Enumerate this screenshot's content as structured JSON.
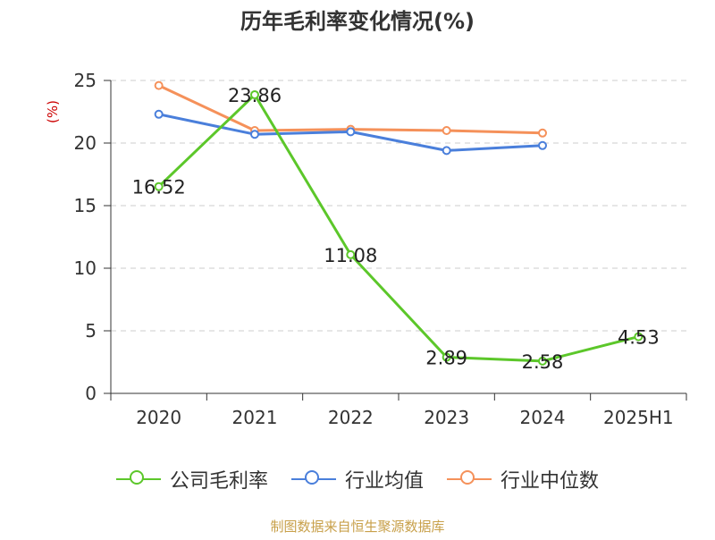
{
  "chart_data": {
    "type": "line",
    "title": "历年毛利率变化情况(%)",
    "ylabel": "(%)",
    "xlabel": "",
    "categories": [
      "2020",
      "2021",
      "2022",
      "2023",
      "2024",
      "2025H1"
    ],
    "ylim": [
      0,
      25
    ],
    "yticks": [
      0,
      5,
      10,
      15,
      20,
      25
    ],
    "grid": true,
    "legend_position": "bottom",
    "series": [
      {
        "name": "公司毛利率",
        "color": "#5cc72a",
        "values": [
          16.52,
          23.86,
          11.08,
          2.89,
          2.58,
          4.53
        ],
        "labels": [
          "16.52",
          "23.86",
          "11.08",
          "2.89",
          "2.58",
          "4.53"
        ]
      },
      {
        "name": "行业均值",
        "color": "#4a7fdb",
        "values": [
          22.3,
          20.7,
          20.9,
          19.4,
          19.8,
          null
        ]
      },
      {
        "name": "行业中位数",
        "color": "#f5915a",
        "values": [
          24.6,
          21.0,
          21.1,
          21.0,
          20.8,
          null
        ]
      }
    ]
  },
  "footer": {
    "source": "制图数据来自恒生聚源数据库"
  }
}
